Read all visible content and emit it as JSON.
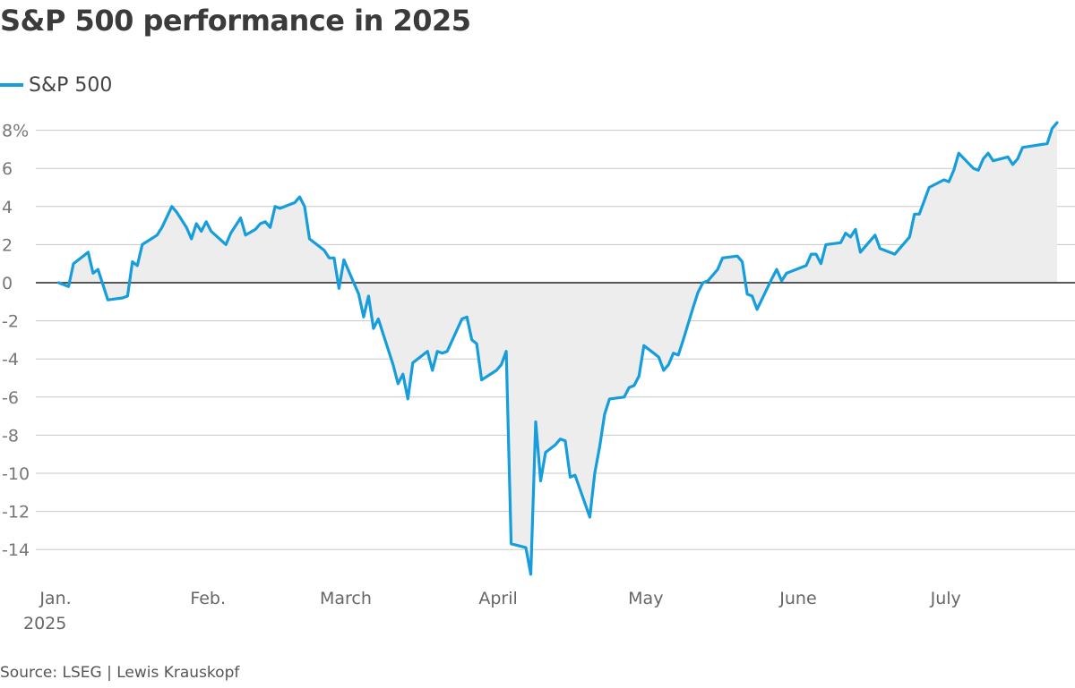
{
  "chart_data": {
    "type": "area",
    "title": "S&P 500 performance in 2025",
    "legend": [
      {
        "label": "S&P 500",
        "color": "#159ddc"
      }
    ],
    "legend_position": "top-left",
    "ylabel": "",
    "xlabel": "",
    "ylim": [
      -15.5,
      8.5
    ],
    "y_unit_suffix": "%",
    "yticks": [
      {
        "value": 8,
        "label": "8%"
      },
      {
        "value": 6,
        "label": "6"
      },
      {
        "value": 4,
        "label": "4"
      },
      {
        "value": 2,
        "label": "2"
      },
      {
        "value": 0,
        "label": "0"
      },
      {
        "value": -2,
        "label": "-2"
      },
      {
        "value": -4,
        "label": "-4"
      },
      {
        "value": -6,
        "label": "-6"
      },
      {
        "value": -8,
        "label": "-8"
      },
      {
        "value": -10,
        "label": "-10"
      },
      {
        "value": -12,
        "label": "-12"
      },
      {
        "value": -14,
        "label": "-14"
      }
    ],
    "xlim": [
      0,
      207
    ],
    "xticks": [
      {
        "day": 0,
        "label": "Jan.",
        "sublabel": "2025"
      },
      {
        "day": 31,
        "label": "Feb.",
        "sublabel": ""
      },
      {
        "day": 59,
        "label": "March",
        "sublabel": ""
      },
      {
        "day": 90,
        "label": "April",
        "sublabel": ""
      },
      {
        "day": 120,
        "label": "May",
        "sublabel": ""
      },
      {
        "day": 151,
        "label": "June",
        "sublabel": ""
      },
      {
        "day": 181,
        "label": "July",
        "sublabel": ""
      }
    ],
    "grid": true,
    "series": [
      {
        "name": "S&P 500",
        "color": "#159ddc",
        "x_unit": "days since Jan. 1, 2025",
        "points": [
          [
            1,
            0.0
          ],
          [
            3,
            -0.2
          ],
          [
            4,
            1.0
          ],
          [
            6,
            1.4
          ],
          [
            7,
            1.6
          ],
          [
            8,
            0.5
          ],
          [
            9,
            0.7
          ],
          [
            11,
            -0.9
          ],
          [
            14,
            -0.8
          ],
          [
            15,
            -0.7
          ],
          [
            16,
            1.1
          ],
          [
            17,
            0.9
          ],
          [
            18,
            2.0
          ],
          [
            21,
            2.5
          ],
          [
            22,
            2.9
          ],
          [
            24,
            4.0
          ],
          [
            25,
            3.7
          ],
          [
            27,
            2.9
          ],
          [
            28,
            2.3
          ],
          [
            29,
            3.1
          ],
          [
            30,
            2.7
          ],
          [
            31,
            3.2
          ],
          [
            32,
            2.7
          ],
          [
            35,
            2.0
          ],
          [
            36,
            2.6
          ],
          [
            38,
            3.4
          ],
          [
            39,
            2.5
          ],
          [
            41,
            2.8
          ],
          [
            42,
            3.1
          ],
          [
            43,
            3.2
          ],
          [
            44,
            2.9
          ],
          [
            45,
            4.0
          ],
          [
            46,
            3.9
          ],
          [
            49,
            4.2
          ],
          [
            50,
            4.5
          ],
          [
            51,
            4.0
          ],
          [
            52,
            2.3
          ],
          [
            55,
            1.7
          ],
          [
            56,
            1.3
          ],
          [
            57,
            1.3
          ],
          [
            58,
            -0.3
          ],
          [
            59,
            1.2
          ],
          [
            60,
            0.6
          ],
          [
            62,
            -0.6
          ],
          [
            63,
            -1.8
          ],
          [
            64,
            -0.7
          ],
          [
            65,
            -2.4
          ],
          [
            66,
            -1.9
          ],
          [
            69,
            -4.3
          ],
          [
            70,
            -5.3
          ],
          [
            71,
            -4.8
          ],
          [
            72,
            -6.1
          ],
          [
            73,
            -4.2
          ],
          [
            76,
            -3.6
          ],
          [
            77,
            -4.6
          ],
          [
            78,
            -3.6
          ],
          [
            79,
            -3.7
          ],
          [
            80,
            -3.6
          ],
          [
            83,
            -1.9
          ],
          [
            84,
            -1.8
          ],
          [
            85,
            -3.0
          ],
          [
            86,
            -3.2
          ],
          [
            87,
            -5.1
          ],
          [
            90,
            -4.6
          ],
          [
            91,
            -4.3
          ],
          [
            92,
            -3.6
          ],
          [
            93,
            -13.7
          ],
          [
            96,
            -13.9
          ],
          [
            97,
            -15.3
          ],
          [
            98,
            -7.3
          ],
          [
            99,
            -10.4
          ],
          [
            100,
            -8.9
          ],
          [
            102,
            -8.5
          ],
          [
            103,
            -8.2
          ],
          [
            104,
            -8.3
          ],
          [
            105,
            -10.2
          ],
          [
            106,
            -10.1
          ],
          [
            109,
            -12.3
          ],
          [
            110,
            -10.0
          ],
          [
            111,
            -8.6
          ],
          [
            112,
            -6.9
          ],
          [
            113,
            -6.1
          ],
          [
            116,
            -6.0
          ],
          [
            117,
            -5.5
          ],
          [
            118,
            -5.4
          ],
          [
            119,
            -4.9
          ],
          [
            120,
            -3.3
          ],
          [
            122,
            -3.7
          ],
          [
            123,
            -3.9
          ],
          [
            124,
            -4.6
          ],
          [
            125,
            -4.3
          ],
          [
            126,
            -3.7
          ],
          [
            127,
            -3.8
          ],
          [
            128,
            -3.0
          ],
          [
            130,
            -1.3
          ],
          [
            131,
            -0.5
          ],
          [
            132,
            0.0
          ],
          [
            133,
            0.1
          ],
          [
            134,
            0.4
          ],
          [
            135,
            0.7
          ],
          [
            136,
            1.3
          ],
          [
            139,
            1.4
          ],
          [
            140,
            1.1
          ],
          [
            141,
            -0.6
          ],
          [
            142,
            -0.7
          ],
          [
            143,
            -1.4
          ],
          [
            146,
            0.2
          ],
          [
            147,
            0.7
          ],
          [
            148,
            0.1
          ],
          [
            149,
            0.5
          ],
          [
            150,
            0.6
          ],
          [
            153,
            0.9
          ],
          [
            154,
            1.5
          ],
          [
            155,
            1.5
          ],
          [
            156,
            1.0
          ],
          [
            157,
            2.0
          ],
          [
            160,
            2.1
          ],
          [
            161,
            2.6
          ],
          [
            162,
            2.4
          ],
          [
            163,
            2.8
          ],
          [
            164,
            1.6
          ],
          [
            167,
            2.5
          ],
          [
            168,
            1.8
          ],
          [
            171,
            1.5
          ],
          [
            174,
            2.4
          ],
          [
            175,
            3.6
          ],
          [
            176,
            3.6
          ],
          [
            177,
            4.3
          ],
          [
            178,
            5.0
          ],
          [
            181,
            5.4
          ],
          [
            182,
            5.3
          ],
          [
            183,
            5.9
          ],
          [
            184,
            6.8
          ],
          [
            187,
            6.0
          ],
          [
            188,
            5.9
          ],
          [
            189,
            6.5
          ],
          [
            190,
            6.8
          ],
          [
            191,
            6.4
          ],
          [
            194,
            6.6
          ],
          [
            195,
            6.2
          ],
          [
            196,
            6.5
          ],
          [
            197,
            7.1
          ],
          [
            202,
            7.3
          ],
          [
            203,
            8.1
          ],
          [
            204,
            8.4
          ]
        ]
      }
    ],
    "source": "Source: LSEG | Lewis Krauskopf"
  }
}
